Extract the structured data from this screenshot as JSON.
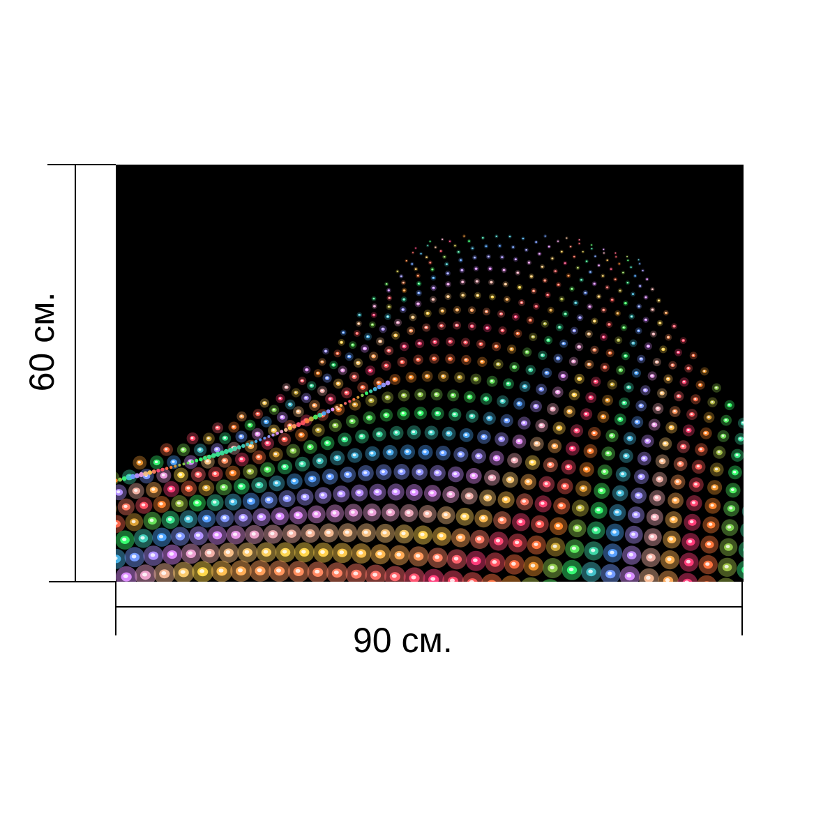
{
  "product": {
    "width_label": "90 см.",
    "height_label": "60 см."
  },
  "artwork": {
    "background_color": "#000000",
    "led_palette": [
      "#ff3b7a",
      "#ff8a2a",
      "#35ff6a",
      "#4da0ff",
      "#e48cff",
      "#ffd84a"
    ]
  }
}
